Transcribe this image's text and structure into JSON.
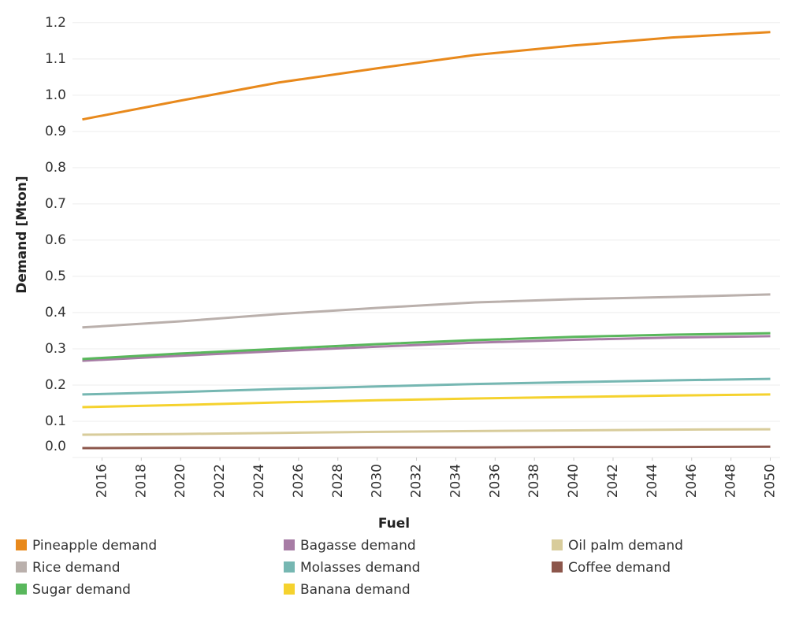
{
  "chart_data": {
    "type": "line",
    "x_label": "Fuel",
    "y_label": "Demand [Mton]",
    "x": [
      2015,
      2020,
      2025,
      2030,
      2035,
      2040,
      2045,
      2050
    ],
    "series": [
      {
        "name": "Pineapple demand",
        "color": "#e8891c",
        "values": [
          0.933,
          0.985,
          1.035,
          1.074,
          1.111,
          1.137,
          1.159,
          1.174
        ]
      },
      {
        "name": "Rice demand",
        "color": "#bab0ac",
        "values": [
          0.359,
          0.376,
          0.396,
          0.413,
          0.428,
          0.437,
          0.443,
          0.45
        ]
      },
      {
        "name": "Sugar demand",
        "color": "#59b75c",
        "values": [
          0.272,
          0.287,
          0.3,
          0.313,
          0.324,
          0.333,
          0.339,
          0.343
        ]
      },
      {
        "name": "Bagasse demand",
        "color": "#a77ca5",
        "values": [
          0.267,
          0.281,
          0.294,
          0.306,
          0.317,
          0.325,
          0.331,
          0.335
        ]
      },
      {
        "name": "Molasses demand",
        "color": "#76b7b2",
        "values": [
          0.174,
          0.181,
          0.189,
          0.196,
          0.203,
          0.208,
          0.213,
          0.217
        ]
      },
      {
        "name": "Banana demand",
        "color": "#f5d22e",
        "values": [
          0.139,
          0.145,
          0.152,
          0.158,
          0.163,
          0.167,
          0.171,
          0.174
        ]
      },
      {
        "name": "Oil palm demand",
        "color": "#d8cc9b",
        "values": [
          0.063,
          0.065,
          0.068,
          0.071,
          0.073,
          0.075,
          0.077,
          0.078
        ]
      },
      {
        "name": "Coffee demand",
        "color": "#8c564b",
        "values": [
          0.026,
          0.027,
          0.027,
          0.028,
          0.028,
          0.029,
          0.029,
          0.03
        ]
      }
    ],
    "xlim": [
      2014.5,
      2050.5
    ],
    "xticks": [
      2016,
      2018,
      2020,
      2022,
      2024,
      2026,
      2028,
      2030,
      2032,
      2034,
      2036,
      2038,
      2040,
      2042,
      2044,
      2046,
      2048,
      2050
    ],
    "ylim": [
      0,
      1.23
    ],
    "yticks": [
      {
        "value": 0,
        "label": "0.0"
      },
      0.1,
      0.2,
      0.3,
      0.4,
      0.5,
      0.6,
      0.7,
      0.8,
      0.9,
      {
        "value": 1,
        "label": "1.0"
      },
      1.1,
      1.2
    ],
    "grid": true
  }
}
